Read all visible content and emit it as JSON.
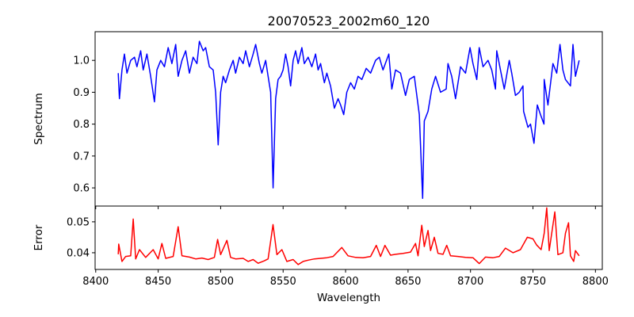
{
  "chart_data": [
    {
      "type": "line",
      "title": "20070523_2002m60_120",
      "xlabel": "",
      "ylabel": "Spectrum",
      "xlim": [
        8399.5,
        8805.5
      ],
      "ylim": [
        0.543,
        1.09
      ],
      "xticks": [
        8400,
        8450,
        8500,
        8550,
        8600,
        8650,
        8700,
        8750,
        8800
      ],
      "yticks": [
        0.6,
        0.7,
        0.8,
        0.9,
        1.0
      ],
      "ytick_labels": [
        "0.6",
        "0.7",
        "0.8",
        "0.9",
        "1.0"
      ],
      "grid": false,
      "color": "#0000ff",
      "x": [
        8418,
        8419,
        8421,
        8423,
        8425,
        8428,
        8431,
        8433,
        8436,
        8438,
        8441,
        8444,
        8447,
        8449,
        8452,
        8455,
        8458,
        8461,
        8464,
        8466,
        8469,
        8472,
        8475,
        8478,
        8481,
        8483,
        8486,
        8488,
        8491,
        8494,
        8496,
        8498,
        8500,
        8502,
        8504,
        8507,
        8510,
        8512,
        8515,
        8518,
        8520,
        8523,
        8526,
        8528,
        8531,
        8533,
        8536,
        8538,
        8540,
        8542,
        8544,
        8546,
        8548,
        8550,
        8552,
        8554,
        8556,
        8558,
        8560,
        8562,
        8565,
        8567,
        8570,
        8573,
        8576,
        8578,
        8580,
        8583,
        8585,
        8588,
        8591,
        8594,
        8596,
        8598.5,
        8601,
        8604,
        8607,
        8610,
        8613,
        8616.5,
        8620,
        8624,
        8627,
        8630,
        8634.6,
        8637,
        8640,
        8644,
        8648,
        8651,
        8655,
        8659,
        8661.7,
        8663,
        8666,
        8669,
        8672,
        8676,
        8680.5,
        8682,
        8685,
        8688,
        8692,
        8696,
        8699.6,
        8702,
        8705,
        8707,
        8710,
        8714,
        8717,
        8720,
        8721,
        8724,
        8727,
        8731,
        8733,
        8736,
        8739,
        8742,
        8742.5,
        8746,
        8748,
        8750.8,
        8753.5,
        8756,
        8758.8,
        8759,
        8762,
        8766,
        8769,
        8771.6,
        8774,
        8776,
        8780,
        8782,
        8784,
        8787
      ],
      "values": [
        0.96,
        0.88,
        0.97,
        1.02,
        0.96,
        1.0,
        1.01,
        0.98,
        1.03,
        0.97,
        1.02,
        0.95,
        0.87,
        0.97,
        1.0,
        0.98,
        1.04,
        0.99,
        1.05,
        0.95,
        1.0,
        1.03,
        0.96,
        1.01,
        0.99,
        1.06,
        1.03,
        1.04,
        0.98,
        0.97,
        0.9,
        0.735,
        0.9,
        0.95,
        0.93,
        0.97,
        1.0,
        0.96,
        1.01,
        0.99,
        1.03,
        0.98,
        1.02,
        1.05,
        0.99,
        0.96,
        1.0,
        0.95,
        0.9,
        0.6,
        0.88,
        0.94,
        0.95,
        0.97,
        1.02,
        0.98,
        0.92,
        1.0,
        1.03,
        0.99,
        1.04,
        0.99,
        1.01,
        0.98,
        1.02,
        0.97,
        0.99,
        0.93,
        0.96,
        0.92,
        0.85,
        0.88,
        0.86,
        0.83,
        0.9,
        0.93,
        0.91,
        0.95,
        0.94,
        0.975,
        0.96,
        1.0,
        1.01,
        0.97,
        1.02,
        0.91,
        0.97,
        0.96,
        0.89,
        0.94,
        0.95,
        0.83,
        0.567,
        0.81,
        0.84,
        0.91,
        0.95,
        0.9,
        0.91,
        0.99,
        0.95,
        0.88,
        0.98,
        0.96,
        1.04,
        0.99,
        0.94,
        1.04,
        0.98,
        1.0,
        0.97,
        0.91,
        1.03,
        0.97,
        0.91,
        1.0,
        0.96,
        0.89,
        0.9,
        0.92,
        0.84,
        0.79,
        0.8,
        0.74,
        0.86,
        0.83,
        0.8,
        0.94,
        0.86,
        0.99,
        0.96,
        1.05,
        0.97,
        0.94,
        0.92,
        1.05,
        0.95,
        1.0
      ]
    },
    {
      "type": "line",
      "title": "",
      "xlabel": "Wavelength",
      "ylabel": "Error",
      "xlim": [
        8399.5,
        8805.5
      ],
      "ylim": [
        0.0346,
        0.0551
      ],
      "xticks": [
        8400,
        8450,
        8500,
        8550,
        8600,
        8650,
        8700,
        8750,
        8800
      ],
      "xtick_labels": [
        "8400",
        "8450",
        "8500",
        "8550",
        "8600",
        "8650",
        "8700",
        "8750",
        "8800"
      ],
      "yticks": [
        0.04,
        0.05
      ],
      "ytick_labels": [
        "0.04",
        "0.05"
      ],
      "grid": false,
      "color": "#ff0000",
      "x": [
        8418,
        8418.4,
        8421,
        8424,
        8428,
        8430,
        8432,
        8435,
        8440,
        8446,
        8450,
        8453,
        8456,
        8462,
        8466,
        8469,
        8475,
        8480,
        8485,
        8490,
        8495,
        8497.6,
        8500,
        8505,
        8508,
        8512,
        8518,
        8522,
        8526,
        8530,
        8535,
        8538,
        8541.9,
        8545,
        8549,
        8553,
        8558,
        8562,
        8566,
        8570,
        8575,
        8580,
        8585,
        8590,
        8597,
        8602,
        8608,
        8614,
        8620,
        8624.6,
        8628,
        8631.5,
        8636,
        8640,
        8646,
        8652,
        8656,
        8658,
        8661,
        8663,
        8664.5,
        8666,
        8668,
        8671,
        8674,
        8678,
        8681,
        8684,
        8690,
        8696,
        8702,
        8707,
        8712,
        8718,
        8723,
        8728,
        8734,
        8740,
        8745.5,
        8750,
        8753,
        8756.5,
        8759,
        8761,
        8763,
        8767.5,
        8770,
        8774,
        8776,
        8778.5,
        8780,
        8782.6,
        8784,
        8787
      ],
      "values": [
        0.0395,
        0.0428,
        0.0372,
        0.0388,
        0.039,
        0.0509,
        0.038,
        0.041,
        0.0385,
        0.041,
        0.038,
        0.043,
        0.0382,
        0.0388,
        0.0484,
        0.039,
        0.0386,
        0.038,
        0.0383,
        0.0378,
        0.0385,
        0.0443,
        0.0394,
        0.044,
        0.0385,
        0.038,
        0.0382,
        0.0372,
        0.0378,
        0.0366,
        0.0374,
        0.038,
        0.0491,
        0.0394,
        0.041,
        0.0372,
        0.0378,
        0.0362,
        0.0372,
        0.0376,
        0.038,
        0.0382,
        0.0384,
        0.0388,
        0.0417,
        0.039,
        0.0385,
        0.0384,
        0.0388,
        0.0424,
        0.0388,
        0.0424,
        0.0392,
        0.0395,
        0.0398,
        0.0402,
        0.043,
        0.039,
        0.0489,
        0.042,
        0.0446,
        0.0472,
        0.0407,
        0.045,
        0.0398,
        0.0395,
        0.0424,
        0.039,
        0.0388,
        0.0385,
        0.0384,
        0.0365,
        0.0386,
        0.0384,
        0.0388,
        0.0415,
        0.04,
        0.041,
        0.045,
        0.0445,
        0.0425,
        0.041,
        0.0463,
        0.0545,
        0.0407,
        0.0532,
        0.0394,
        0.04,
        0.0463,
        0.0497,
        0.039,
        0.0372,
        0.0407,
        0.039
      ]
    }
  ]
}
